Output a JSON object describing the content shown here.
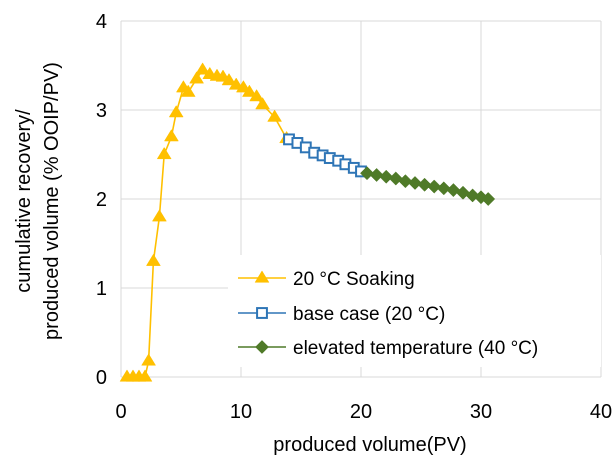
{
  "chart_data": {
    "type": "line",
    "title": "",
    "xlabel": "produced volume(PV)",
    "ylabel_lines": [
      "cumulative recovery/",
      "produced volume (% OOIP/PV)"
    ],
    "xlim": [
      0,
      40
    ],
    "ylim": [
      0,
      4
    ],
    "xticks": [
      0,
      10,
      20,
      30,
      40
    ],
    "yticks": [
      0,
      1,
      2,
      3,
      4
    ],
    "grid": "horizontal and vertical major gridlines",
    "legend_position": "bottom-right inside plot",
    "series": [
      {
        "name": "20 °C Soaking",
        "color": "#FFC000",
        "marker": "triangle",
        "points": [
          [
            0.5,
            0.0
          ],
          [
            1.0,
            0.0
          ],
          [
            1.5,
            0.0
          ],
          [
            2.0,
            0.0
          ],
          [
            2.3,
            0.18
          ],
          [
            2.7,
            1.3
          ],
          [
            3.2,
            1.8
          ],
          [
            3.6,
            2.5
          ],
          [
            4.2,
            2.7
          ],
          [
            4.6,
            2.97
          ],
          [
            5.2,
            3.25
          ],
          [
            5.6,
            3.2
          ],
          [
            6.3,
            3.35
          ],
          [
            6.8,
            3.45
          ],
          [
            7.4,
            3.4
          ],
          [
            8.0,
            3.38
          ],
          [
            8.5,
            3.37
          ],
          [
            9.0,
            3.33
          ],
          [
            9.6,
            3.28
          ],
          [
            10.2,
            3.25
          ],
          [
            10.7,
            3.2
          ],
          [
            11.3,
            3.15
          ],
          [
            11.8,
            3.06
          ],
          [
            12.8,
            2.92
          ],
          [
            13.8,
            2.68
          ]
        ]
      },
      {
        "name": "base case (20 °C)",
        "color": "#2E75B6",
        "marker": "open-square",
        "points": [
          [
            14.0,
            2.67
          ],
          [
            14.7,
            2.63
          ],
          [
            15.4,
            2.58
          ],
          [
            16.1,
            2.52
          ],
          [
            16.8,
            2.49
          ],
          [
            17.4,
            2.46
          ],
          [
            18.1,
            2.43
          ],
          [
            18.7,
            2.39
          ],
          [
            19.4,
            2.35
          ],
          [
            20.0,
            2.31
          ]
        ]
      },
      {
        "name": "elevated temperature (40 °C)",
        "color": "#4F7A28",
        "marker": "diamond",
        "points": [
          [
            20.5,
            2.29
          ],
          [
            21.3,
            2.27
          ],
          [
            22.1,
            2.25
          ],
          [
            22.9,
            2.23
          ],
          [
            23.7,
            2.2
          ],
          [
            24.5,
            2.18
          ],
          [
            25.3,
            2.16
          ],
          [
            26.1,
            2.14
          ],
          [
            26.9,
            2.12
          ],
          [
            27.7,
            2.1
          ],
          [
            28.5,
            2.07
          ],
          [
            29.3,
            2.04
          ],
          [
            30.0,
            2.02
          ],
          [
            30.6,
            2.0
          ]
        ]
      }
    ]
  }
}
